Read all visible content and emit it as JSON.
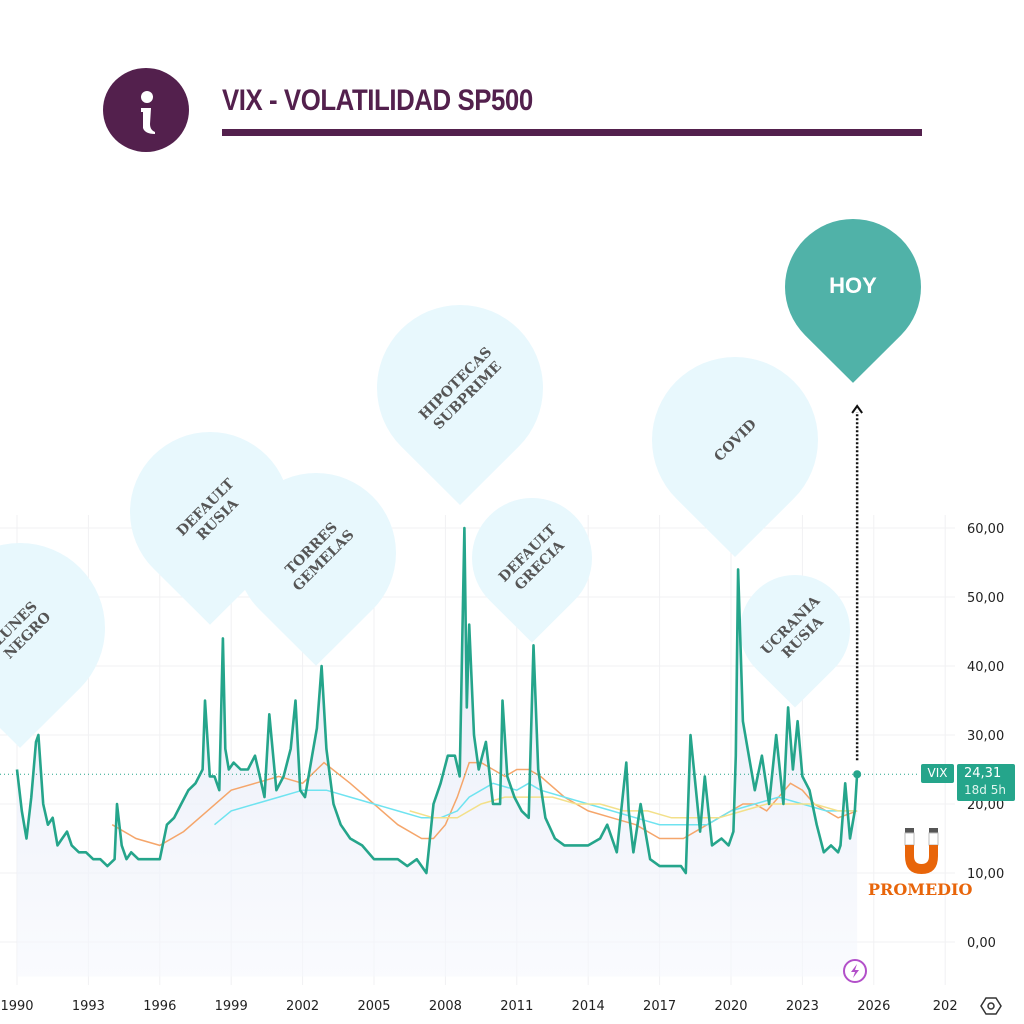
{
  "header": {
    "title": "VIX - VOLATILIDAD SP500",
    "icon": "info-icon"
  },
  "colors": {
    "brand": "#53204d",
    "vix_line": "#25a58b",
    "ma_orange": "#f5a66b",
    "ma_cyan": "#6fe3f0",
    "ma_yellow": "#f3e08a",
    "pin_fill": "#e8f8fd",
    "hoy_fill": "#50b2a8",
    "promedio": "#e8650a"
  },
  "price_tag": {
    "symbol": "VIX",
    "value": "24,31",
    "countdown": "18d 5h"
  },
  "promedio_label": "PROMEDIO",
  "events": [
    {
      "line1": "LUNES",
      "line2": "NEGRO",
      "year": 1990.9
    },
    {
      "line1": "DEFAULT",
      "line2": "RUSIA",
      "year": 1998.7
    },
    {
      "line1": "TORRES",
      "line2": "GEMELAS",
      "year": 2002.5
    },
    {
      "line1": "HIPOTECAS",
      "line2": "SUBPRIME",
      "year": 2008.8
    },
    {
      "line1": "DEFAULT",
      "line2": "GRECIA",
      "year": 2011.7
    },
    {
      "line1": "COVID",
      "line2": "",
      "year": 2020.3
    },
    {
      "line1": "UCRANIA",
      "line2": "RUSIA",
      "year": 2022.3
    }
  ],
  "hoy_label": "HOY",
  "chart_data": {
    "type": "line",
    "title": "VIX - VOLATILIDAD SP500",
    "xlabel": "",
    "ylabel": "",
    "xlim": [
      1990,
      2028
    ],
    "ylim": [
      -5,
      65
    ],
    "x_ticks": [
      "1990",
      "1993",
      "1996",
      "1999",
      "2002",
      "2005",
      "2008",
      "2011",
      "2014",
      "2017",
      "2020",
      "2023",
      "2026",
      "202"
    ],
    "y_ticks": [
      "60,00",
      "50,00",
      "40,00",
      "30,00",
      "20,00",
      "10,00",
      "0,00"
    ],
    "y_tick_values": [
      60,
      50,
      40,
      30,
      20,
      10,
      0
    ],
    "last_value": 24.31,
    "series": [
      {
        "name": "VIX",
        "x": [
          1990.0,
          1990.2,
          1990.4,
          1990.6,
          1990.8,
          1990.9,
          1991.0,
          1991.1,
          1991.3,
          1991.5,
          1991.7,
          1991.9,
          1992.1,
          1992.3,
          1992.6,
          1992.9,
          1993.2,
          1993.5,
          1993.8,
          1994.1,
          1994.2,
          1994.4,
          1994.6,
          1994.8,
          1995.1,
          1995.4,
          1995.7,
          1996.0,
          1996.3,
          1996.6,
          1996.9,
          1997.2,
          1997.5,
          1997.8,
          1997.9,
          1998.1,
          1998.3,
          1998.5,
          1998.65,
          1998.75,
          1998.9,
          1999.1,
          1999.4,
          1999.7,
          2000.0,
          2000.2,
          2000.4,
          2000.6,
          2000.9,
          2001.2,
          2001.5,
          2001.7,
          2001.9,
          2002.1,
          2002.4,
          2002.6,
          2002.8,
          2003.0,
          2003.3,
          2003.6,
          2004.0,
          2004.5,
          2005.0,
          2005.5,
          2006.0,
          2006.4,
          2006.8,
          2007.2,
          2007.5,
          2007.8,
          2008.1,
          2008.4,
          2008.6,
          2008.8,
          2008.9,
          2009.0,
          2009.2,
          2009.4,
          2009.7,
          2010.0,
          2010.3,
          2010.4,
          2010.6,
          2010.9,
          2011.2,
          2011.5,
          2011.7,
          2011.9,
          2012.2,
          2012.6,
          2013.0,
          2013.5,
          2014.0,
          2014.5,
          2014.8,
          2015.2,
          2015.6,
          2015.7,
          2015.9,
          2016.2,
          2016.6,
          2017.0,
          2017.5,
          2017.9,
          2018.1,
          2018.3,
          2018.7,
          2018.9,
          2019.2,
          2019.6,
          2019.9,
          2020.1,
          2020.2,
          2020.3,
          2020.5,
          2020.8,
          2021.0,
          2021.3,
          2021.6,
          2021.9,
          2022.2,
          2022.4,
          2022.6,
          2022.8,
          2023.0,
          2023.3,
          2023.6,
          2023.9,
          2024.2,
          2024.5,
          2024.6,
          2024.8,
          2025.0,
          2025.2,
          2025.3
        ],
        "values": [
          25,
          19,
          15,
          21,
          29,
          30,
          25,
          20,
          17,
          18,
          14,
          15,
          16,
          14,
          13,
          13,
          12,
          12,
          11,
          12,
          20,
          14,
          12,
          13,
          12,
          12,
          12,
          12,
          17,
          18,
          20,
          22,
          23,
          25,
          35,
          24,
          24,
          22,
          44,
          28,
          25,
          26,
          25,
          25,
          27,
          24,
          21,
          33,
          22,
          24,
          28,
          35,
          22,
          21,
          27,
          31,
          40,
          28,
          20,
          17,
          15,
          14,
          12,
          12,
          12,
          11,
          12,
          10,
          20,
          23,
          27,
          27,
          24,
          60,
          34,
          46,
          30,
          25,
          29,
          20,
          20,
          35,
          24,
          21,
          19,
          18,
          43,
          25,
          18,
          15,
          14,
          14,
          14,
          15,
          17,
          13,
          26,
          19,
          13,
          20,
          12,
          11,
          11,
          11,
          10,
          30,
          16,
          24,
          14,
          15,
          14,
          16,
          27,
          54,
          32,
          26,
          22,
          27,
          20,
          30,
          20,
          34,
          25,
          32,
          24,
          22,
          17,
          13,
          14,
          13,
          14,
          23,
          15,
          19,
          24.31
        ]
      },
      {
        "name": "MA naranja",
        "x": [
          1994.0,
          1995.0,
          1996.0,
          1997.0,
          1998.0,
          1999.0,
          2000.0,
          2001.0,
          2002.0,
          2002.9,
          2004.0,
          2005.0,
          2006.0,
          2007.0,
          2007.5,
          2008.0,
          2008.5,
          2009.0,
          2009.5,
          2010.0,
          2010.5,
          2011.0,
          2011.5,
          2012.0,
          2013.0,
          2014.0,
          2015.0,
          2016.0,
          2017.0,
          2018.0,
          2019.0,
          2020.0,
          2020.5,
          2021.0,
          2021.5,
          2022.0,
          2022.5,
          2023.0,
          2023.5,
          2024.0,
          2024.5,
          2025.3
        ],
        "values": [
          17,
          15,
          14,
          16,
          19,
          22,
          23,
          24,
          23,
          26,
          23,
          20,
          17,
          15,
          15,
          17,
          21,
          26,
          26,
          25,
          24,
          25,
          25,
          24,
          21,
          19,
          18,
          17,
          15,
          15,
          17,
          19,
          20,
          20,
          19,
          21,
          23,
          22,
          20,
          19,
          18,
          19
        ]
      },
      {
        "name": "MA cian",
        "x": [
          1998.3,
          1999.0,
          2000.0,
          2001.0,
          2002.0,
          2003.0,
          2004.0,
          2005.0,
          2006.0,
          2007.0,
          2007.8,
          2008.5,
          2009.0,
          2010.0,
          2011.0,
          2011.5,
          2012.0,
          2013.0,
          2014.0,
          2015.0,
          2016.0,
          2017.0,
          2018.0,
          2019.0,
          2020.0,
          2021.0,
          2022.0,
          2023.0,
          2024.0,
          2025.3
        ],
        "values": [
          17,
          19,
          20,
          21,
          22,
          22,
          21,
          20,
          19,
          18,
          18,
          19,
          21,
          23,
          22,
          23,
          22,
          21,
          20,
          19,
          18,
          17,
          17,
          17,
          19,
          20,
          21,
          20,
          19,
          19
        ]
      },
      {
        "name": "MA amarilla",
        "x": [
          2006.5,
          2007.5,
          2008.5,
          2009.5,
          2010.5,
          2011.5,
          2012.5,
          2013.5,
          2014.5,
          2015.5,
          2016.5,
          2017.5,
          2018.5,
          2019.5,
          2020.5,
          2021.5,
          2022.5,
          2023.5,
          2024.5,
          2025.3
        ],
        "values": [
          19,
          18,
          18,
          20,
          21,
          21,
          21,
          20,
          20,
          19,
          19,
          18,
          18,
          18,
          19,
          20,
          20,
          20,
          19,
          19
        ]
      }
    ]
  }
}
